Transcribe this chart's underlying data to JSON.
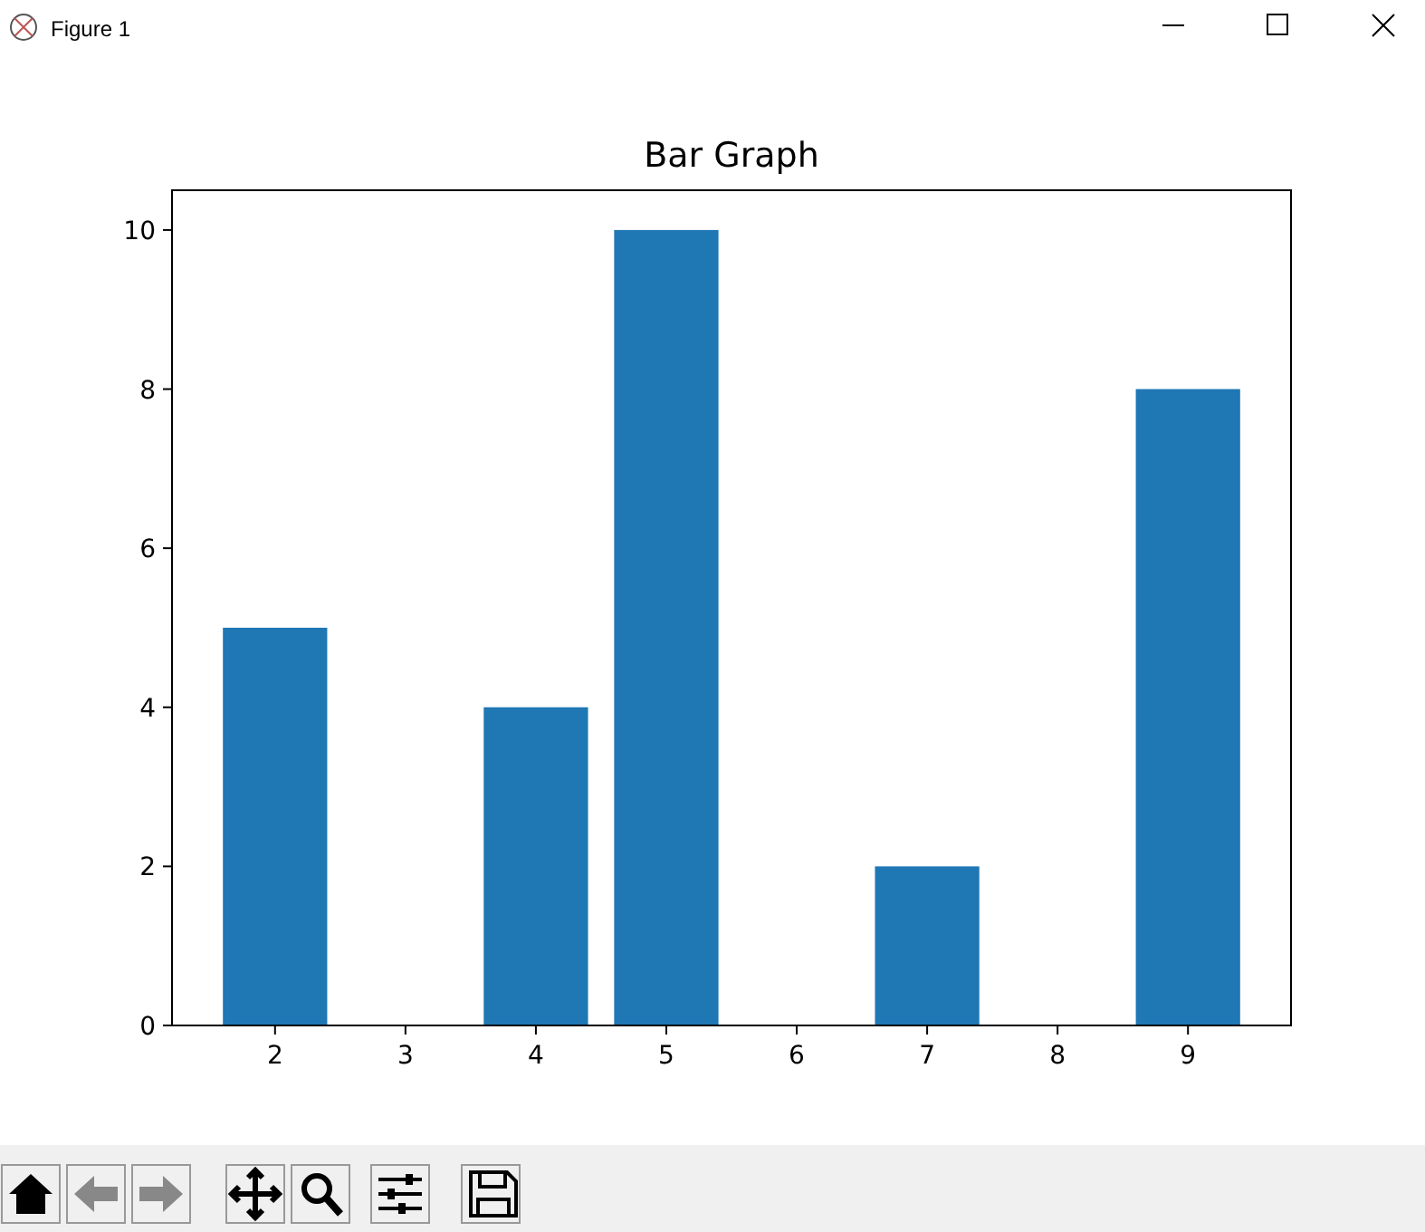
{
  "chart_data": {
    "type": "bar",
    "title": "Bar Graph",
    "x": [
      2,
      4,
      5,
      7,
      9
    ],
    "values": [
      5,
      4,
      10,
      2,
      8
    ],
    "color": "#1f77b4",
    "xlim": [
      1.21,
      9.79
    ],
    "xticks": [
      2,
      3,
      4,
      5,
      6,
      7,
      8,
      9
    ],
    "ylim": [
      0,
      10.5
    ],
    "yticks": [
      0,
      2,
      4,
      6,
      8,
      10
    ],
    "annotations": [
      "Figure 1"
    ]
  }
}
